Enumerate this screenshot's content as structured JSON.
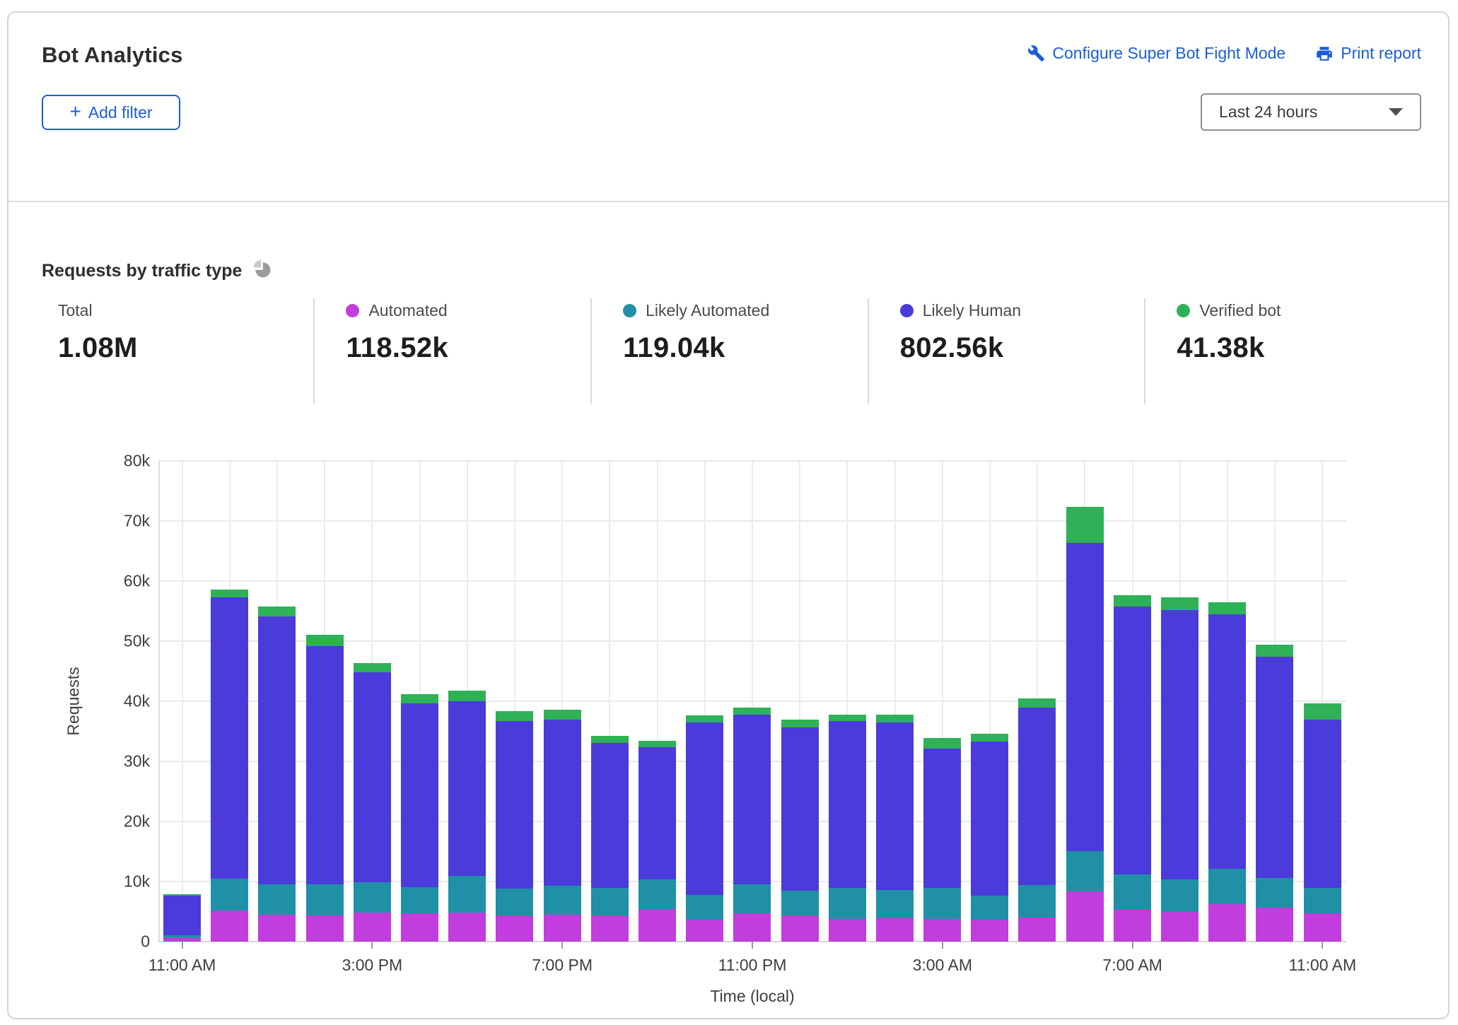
{
  "header": {
    "title": "Bot Analytics",
    "configure_link": "Configure Super Bot Fight Mode",
    "print_link": "Print report",
    "add_filter_label": "Add filter",
    "time_range_value": "Last 24 hours",
    "link_color": "#1d5dd8"
  },
  "section": {
    "title": "Requests by traffic type",
    "stats": [
      {
        "label": "Total",
        "value": "1.08M",
        "dot_color": ""
      },
      {
        "label": "Automated",
        "value": "118.52k",
        "dot_color": "#c13ddd"
      },
      {
        "label": "Likely Automated",
        "value": "119.04k",
        "dot_color": "#2090a6"
      },
      {
        "label": "Likely Human",
        "value": "802.56k",
        "dot_color": "#4b3bdb"
      },
      {
        "label": "Verified bot",
        "value": "41.38k",
        "dot_color": "#2eb157"
      }
    ]
  },
  "chart_data": {
    "type": "bar",
    "stacked": true,
    "title": "Requests by traffic type",
    "xlabel": "Time (local)",
    "ylabel": "Requests",
    "ylim": [
      0,
      80000
    ],
    "grid": true,
    "y_ticks": [
      {
        "value": 80000,
        "label": "80k"
      },
      {
        "value": 70000,
        "label": "70k"
      },
      {
        "value": 60000,
        "label": "60k"
      },
      {
        "value": 50000,
        "label": "50k"
      },
      {
        "value": 40000,
        "label": "40k"
      },
      {
        "value": 30000,
        "label": "30k"
      },
      {
        "value": 20000,
        "label": "20k"
      },
      {
        "value": 10000,
        "label": "10k"
      },
      {
        "value": 0,
        "label": "0"
      }
    ],
    "x_label_every": 4,
    "categories": [
      "11:00 AM",
      "12:00 PM",
      "1:00 PM",
      "2:00 PM",
      "3:00 PM",
      "4:00 PM",
      "5:00 PM",
      "6:00 PM",
      "7:00 PM",
      "8:00 PM",
      "9:00 PM",
      "10:00 PM",
      "11:00 PM",
      "12:00 AM",
      "1:00 AM",
      "2:00 AM",
      "3:00 AM",
      "4:00 AM",
      "5:00 AM",
      "6:00 AM",
      "7:00 AM",
      "8:00 AM",
      "9:00 AM",
      "10:00 AM",
      "11:00 AM"
    ],
    "series": [
      {
        "name": "Automated",
        "color": "#c13ddd",
        "values": [
          600,
          5200,
          4500,
          4400,
          4800,
          4700,
          4800,
          4200,
          4500,
          4200,
          5400,
          3600,
          4700,
          4200,
          3800,
          3900,
          3800,
          3700,
          4000,
          8300,
          5300,
          4900,
          6200,
          5600,
          4700
        ]
      },
      {
        "name": "Likely Automated",
        "color": "#2090a6",
        "values": [
          500,
          5250,
          5000,
          5100,
          5100,
          4400,
          6100,
          4600,
          4800,
          4700,
          5000,
          4200,
          4800,
          4300,
          5200,
          4700,
          5100,
          4000,
          5400,
          6800,
          5900,
          5400,
          5900,
          5000,
          4200
        ]
      },
      {
        "name": "Likely Human",
        "color": "#4b3bdb",
        "values": [
          6500,
          46850,
          44600,
          39700,
          34900,
          30600,
          29100,
          27900,
          27700,
          24200,
          22000,
          28700,
          28300,
          27200,
          27700,
          27900,
          23200,
          25600,
          29600,
          51300,
          44600,
          44900,
          42400,
          36800,
          28100
        ]
      },
      {
        "name": "Verified bot",
        "color": "#2eb157",
        "values": [
          300,
          1350,
          1700,
          1900,
          1500,
          1500,
          1800,
          1600,
          1600,
          1200,
          1000,
          1200,
          1100,
          1300,
          1100,
          1300,
          1800,
          1300,
          1500,
          5900,
          1900,
          2100,
          2000,
          2000,
          2600
        ]
      }
    ]
  }
}
